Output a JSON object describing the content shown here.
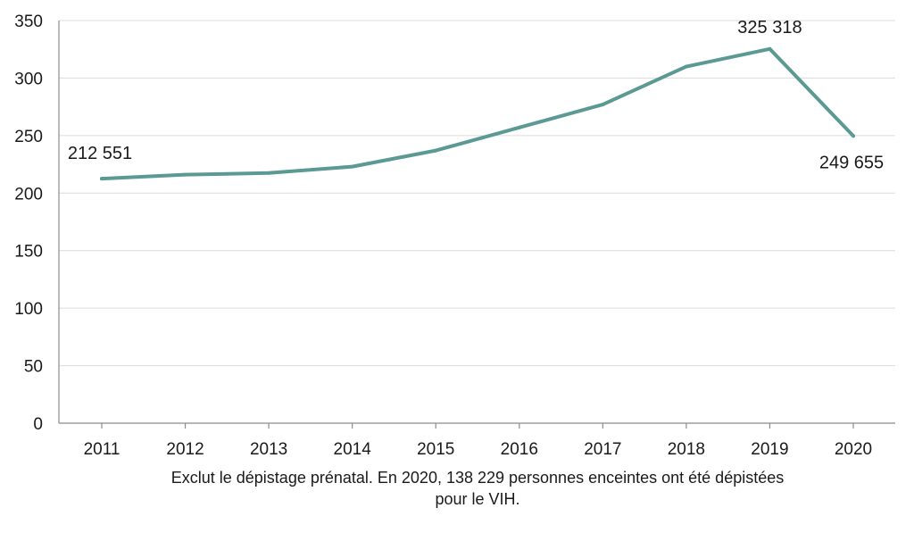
{
  "chart_data": {
    "type": "line",
    "x": [
      "2011",
      "2012",
      "2013",
      "2014",
      "2015",
      "2016",
      "2017",
      "2018",
      "2019",
      "2020"
    ],
    "series": [
      {
        "values": [
          212.551,
          216,
          217.5,
          223,
          237,
          257,
          277,
          310,
          325.318,
          249.655
        ]
      }
    ],
    "ylim": [
      0,
      350
    ],
    "yticks": [
      "0",
      "50",
      "100",
      "150",
      "200",
      "250",
      "300",
      "350"
    ],
    "grid": true,
    "data_labels": [
      {
        "index": 0,
        "text": "212 551"
      },
      {
        "index": 8,
        "text": "325 318"
      },
      {
        "index": 9,
        "text": "249 655"
      }
    ],
    "line_color": "#5b9a94",
    "grid_color": "#dcdcdc",
    "axis_color": "#8c8c8c"
  },
  "note": {
    "line1": "Exclut le dépistage prénatal. En 2020, 138 229 personnes enceintes ont été dépistées",
    "line2": "pour le VIH."
  }
}
